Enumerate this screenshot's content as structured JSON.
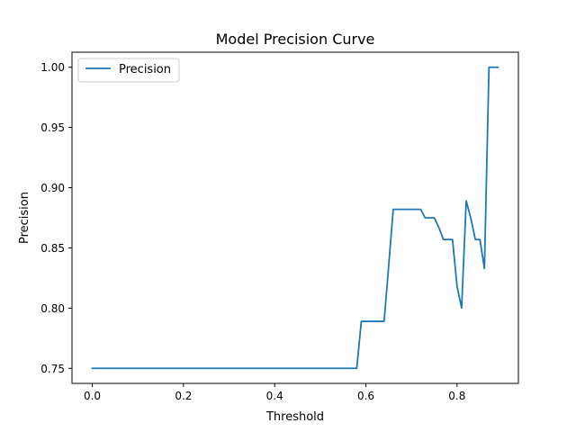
{
  "chart_data": {
    "type": "line",
    "title": "Model Precision Curve",
    "xlabel": "Threshold",
    "ylabel": "Precision",
    "xlim": [
      -0.0445,
      0.9345
    ],
    "ylim": [
      0.7375,
      1.0125
    ],
    "xticks": [
      0.0,
      0.2,
      0.4,
      0.6,
      0.8
    ],
    "xtick_labels": [
      "0.0",
      "0.2",
      "0.4",
      "0.6",
      "0.8"
    ],
    "yticks": [
      0.75,
      0.8,
      0.85,
      0.9,
      0.95,
      1.0
    ],
    "ytick_labels": [
      "0.75",
      "0.80",
      "0.85",
      "0.90",
      "0.95",
      "1.00"
    ],
    "grid": false,
    "legend_position": "upper left",
    "series": [
      {
        "name": "Precision",
        "color": "#1f77b4",
        "x": [
          0.0,
          0.01,
          0.02,
          0.03,
          0.04,
          0.05,
          0.06,
          0.07,
          0.08,
          0.09,
          0.1,
          0.11,
          0.12,
          0.13,
          0.14,
          0.15,
          0.16,
          0.17,
          0.18,
          0.19,
          0.2,
          0.21,
          0.22,
          0.23,
          0.24,
          0.25,
          0.26,
          0.27,
          0.28,
          0.29,
          0.3,
          0.31,
          0.32,
          0.33,
          0.34,
          0.35,
          0.36,
          0.37,
          0.38,
          0.39,
          0.4,
          0.41,
          0.42,
          0.43,
          0.44,
          0.45,
          0.46,
          0.47,
          0.48,
          0.49,
          0.5,
          0.51,
          0.52,
          0.53,
          0.54,
          0.55,
          0.56,
          0.57,
          0.58,
          0.59,
          0.6,
          0.61,
          0.62,
          0.63,
          0.64,
          0.65,
          0.66,
          0.67,
          0.68,
          0.69,
          0.7,
          0.71,
          0.72,
          0.73,
          0.74,
          0.75,
          0.76,
          0.77,
          0.78,
          0.79,
          0.8,
          0.81,
          0.82,
          0.83,
          0.84,
          0.85,
          0.86,
          0.87,
          0.88,
          0.89
        ],
        "y": [
          0.75,
          0.75,
          0.75,
          0.75,
          0.75,
          0.75,
          0.75,
          0.75,
          0.75,
          0.75,
          0.75,
          0.75,
          0.75,
          0.75,
          0.75,
          0.75,
          0.75,
          0.75,
          0.75,
          0.75,
          0.75,
          0.75,
          0.75,
          0.75,
          0.75,
          0.75,
          0.75,
          0.75,
          0.75,
          0.75,
          0.75,
          0.75,
          0.75,
          0.75,
          0.75,
          0.75,
          0.75,
          0.75,
          0.75,
          0.75,
          0.75,
          0.75,
          0.75,
          0.75,
          0.75,
          0.75,
          0.75,
          0.75,
          0.75,
          0.75,
          0.75,
          0.75,
          0.75,
          0.75,
          0.75,
          0.75,
          0.75,
          0.75,
          0.75,
          0.789,
          0.789,
          0.789,
          0.789,
          0.789,
          0.789,
          0.835,
          0.882,
          0.882,
          0.882,
          0.882,
          0.882,
          0.882,
          0.882,
          0.875,
          0.875,
          0.875,
          0.867,
          0.857,
          0.857,
          0.857,
          0.818,
          0.8,
          0.889,
          0.875,
          0.857,
          0.857,
          0.833,
          1.0,
          1.0,
          1.0
        ]
      }
    ]
  }
}
